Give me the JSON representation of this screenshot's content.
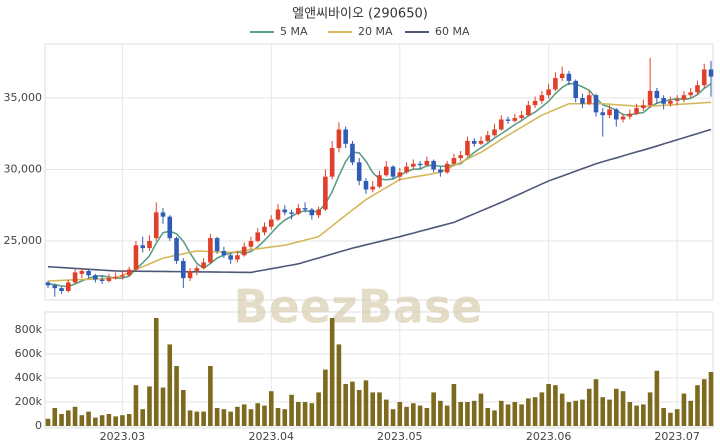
{
  "chart_data": {
    "type": "candlestick",
    "title": "엘앤씨바이오 (290650)",
    "watermark": "BeezBase",
    "categories": [
      null,
      null,
      null,
      null,
      null,
      null,
      null,
      null,
      null,
      null,
      null,
      "2023.03",
      null,
      null,
      null,
      null,
      null,
      null,
      null,
      null,
      null,
      null,
      null,
      null,
      null,
      null,
      null,
      null,
      null,
      null,
      null,
      null,
      null,
      "2023.04",
      null,
      null,
      null,
      null,
      null,
      null,
      null,
      null,
      null,
      null,
      null,
      null,
      null,
      null,
      null,
      null,
      null,
      null,
      "2023.05",
      null,
      null,
      null,
      null,
      null,
      null,
      null,
      null,
      null,
      null,
      null,
      null,
      null,
      null,
      null,
      null,
      null,
      null,
      null,
      null,
      null,
      "2023.06",
      null,
      null,
      null,
      null,
      null,
      null,
      null,
      null,
      null,
      null,
      null,
      null,
      null,
      null,
      null,
      null,
      null,
      null,
      "2023.07",
      null,
      null,
      null,
      null,
      null
    ],
    "open": [
      22100,
      21900,
      21700,
      21500,
      22100,
      22700,
      22900,
      22600,
      22300,
      22200,
      22400,
      22500,
      22600,
      23000,
      24700,
      24500,
      25200,
      27000,
      26700,
      25200,
      23600,
      22400,
      22900,
      23100,
      23500,
      25200,
      24300,
      24000,
      23700,
      24000,
      24600,
      25000,
      25600,
      26000,
      26500,
      27200,
      27000,
      26900,
      27300,
      27200,
      26800,
      27200,
      29500,
      31500,
      32800,
      31800,
      30500,
      29200,
      28600,
      28800,
      29600,
      30200,
      29500,
      29800,
      30200,
      30400,
      30300,
      30600,
      30000,
      29800,
      30400,
      30800,
      31000,
      32000,
      31800,
      32000,
      32400,
      32800,
      33500,
      33400,
      33600,
      33800,
      34500,
      34800,
      35200,
      35600,
      36400,
      36700,
      36200,
      35000,
      34600,
      35200,
      34000,
      33800,
      34200,
      33500,
      33700,
      33900,
      34300,
      34500,
      35500,
      35000,
      34600,
      34800,
      34900,
      35200,
      35400,
      35900,
      37000
    ],
    "high": [
      22200,
      22000,
      21800,
      22300,
      23000,
      23100,
      23000,
      22700,
      22600,
      22700,
      22800,
      22900,
      23200,
      25000,
      25300,
      25400,
      27700,
      27300,
      26800,
      25300,
      23800,
      23100,
      23300,
      23800,
      25500,
      25300,
      24600,
      24200,
      24300,
      24900,
      25300,
      25900,
      26300,
      26800,
      27600,
      27500,
      27200,
      27600,
      27700,
      27300,
      27400,
      30000,
      32000,
      33300,
      33000,
      32000,
      30800,
      29400,
      29200,
      29900,
      30600,
      30300,
      30100,
      30500,
      30700,
      30600,
      30900,
      30700,
      30200,
      30600,
      31100,
      31300,
      32300,
      32200,
      32300,
      32700,
      33200,
      33800,
      33700,
      33900,
      34100,
      34800,
      35100,
      35500,
      36000,
      36800,
      37200,
      36900,
      36300,
      35300,
      35500,
      35300,
      34300,
      34500,
      34300,
      33900,
      34200,
      34600,
      34900,
      37800,
      35700,
      35200,
      35100,
      35200,
      35500,
      35700,
      36200,
      37400,
      37600
    ],
    "low": [
      21700,
      21100,
      21300,
      21400,
      22000,
      22400,
      22400,
      22100,
      22000,
      22100,
      22300,
      22300,
      22500,
      22900,
      24200,
      24300,
      25000,
      26200,
      25000,
      23400,
      21700,
      22200,
      22600,
      23000,
      23400,
      24100,
      23800,
      23400,
      23500,
      23900,
      24400,
      24900,
      25400,
      25800,
      26400,
      26800,
      26500,
      26800,
      27000,
      26500,
      26600,
      27100,
      29300,
      31200,
      31500,
      30300,
      28900,
      28300,
      28400,
      28700,
      29500,
      29300,
      29200,
      29700,
      30000,
      30000,
      30200,
      29800,
      29500,
      29700,
      30300,
      30600,
      30900,
      31600,
      31700,
      31900,
      32300,
      32700,
      33200,
      33300,
      33500,
      33700,
      34300,
      34600,
      35000,
      35500,
      36200,
      35900,
      34700,
      34300,
      34500,
      33700,
      32300,
      33600,
      33000,
      33300,
      33500,
      33800,
      34100,
      34300,
      34600,
      34200,
      34400,
      34500,
      34700,
      35000,
      35200,
      35700,
      35100
    ],
    "close": [
      21900,
      21700,
      21500,
      22100,
      22800,
      22900,
      22600,
      22300,
      22200,
      22400,
      22500,
      22600,
      23000,
      24700,
      24500,
      25000,
      27000,
      26700,
      25200,
      23600,
      22400,
      22900,
      23100,
      23500,
      25200,
      24300,
      24000,
      23700,
      24000,
      24600,
      25000,
      25600,
      26000,
      26500,
      27200,
      27000,
      26900,
      27300,
      27200,
      26800,
      27200,
      29500,
      31500,
      32800,
      31800,
      30500,
      29200,
      28600,
      28800,
      29600,
      30200,
      29500,
      29800,
      30200,
      30400,
      30300,
      30600,
      30000,
      29800,
      30400,
      30800,
      31000,
      32000,
      31800,
      32000,
      32400,
      32800,
      33500,
      33400,
      33600,
      33800,
      34500,
      34800,
      35200,
      35600,
      36400,
      36700,
      36200,
      35000,
      34600,
      35200,
      34000,
      33800,
      34200,
      33500,
      33700,
      33900,
      34300,
      34500,
      35500,
      35000,
      34600,
      34800,
      34900,
      35200,
      35400,
      35900,
      37000,
      36500
    ],
    "up_color": "#e0402a",
    "down_color": "#2f5cb5",
    "ylim": [
      20870,
      38780
    ],
    "yticks": [
      {
        "value": 25000,
        "label": "25,000"
      },
      {
        "value": 30000,
        "label": "30,000"
      },
      {
        "value": 35000,
        "label": "35,000"
      }
    ],
    "grid": true,
    "series": [
      {
        "name": "5 MA",
        "color": "#5c9e86",
        "values": [
          22000,
          21950,
          21850,
          21800,
          22000,
          22200,
          22380,
          22540,
          22560,
          22480,
          22400,
          22400,
          22540,
          23040,
          23460,
          23960,
          24840,
          25580,
          25680,
          25500,
          24980,
          24160,
          23440,
          23100,
          23420,
          23800,
          24020,
          24140,
          24240,
          24120,
          24260,
          24580,
          25040,
          25540,
          26060,
          26460,
          26720,
          26980,
          27120,
          27040,
          27080,
          27600,
          28440,
          29560,
          30560,
          31220,
          31160,
          30580,
          29780,
          29340,
          29280,
          29340,
          29580,
          29860,
          30020,
          30040,
          30260,
          30300,
          30220,
          30220,
          30320,
          30400,
          30800,
          31200,
          31520,
          31840,
          32200,
          32500,
          32820,
          33140,
          33420,
          33760,
          34020,
          34380,
          34780,
          35300,
          35740,
          36020,
          35980,
          35780,
          35540,
          35000,
          34520,
          34360,
          34140,
          33840,
          33820,
          33920,
          33980,
          34380,
          34640,
          34780,
          34880,
          34960,
          34900,
          34980,
          35240,
          35680,
          36000
        ]
      },
      {
        "name": "20 MA",
        "color": "#d5b85c",
        "values": [
          22200,
          22220,
          22240,
          22260,
          22280,
          22300,
          22320,
          22340,
          22360,
          22380,
          22400,
          22600,
          22800,
          23000,
          23200,
          23400,
          23600,
          23800,
          23900,
          24000,
          24100,
          24200,
          24300,
          24280,
          24260,
          24240,
          24220,
          24200,
          24260,
          24330,
          24390,
          24450,
          24510,
          24580,
          24640,
          24700,
          24820,
          24940,
          25060,
          25180,
          25300,
          25680,
          26050,
          26430,
          26800,
          27170,
          27530,
          27900,
          28180,
          28460,
          28740,
          29020,
          29300,
          29380,
          29470,
          29550,
          29630,
          29720,
          29800,
          30030,
          30270,
          30500,
          30730,
          30970,
          31200,
          31500,
          31800,
          32100,
          32400,
          32680,
          32960,
          33240,
          33520,
          33800,
          34000,
          34200,
          34400,
          34600,
          34600,
          34600,
          34600,
          34600,
          34600,
          34570,
          34530,
          34500,
          34470,
          34430,
          34400,
          34430,
          34460,
          34490,
          34520,
          34550,
          34580,
          34610,
          34640,
          34670,
          34700
        ]
      },
      {
        "name": "60 MA",
        "color": "#4d5877",
        "values": [
          23200,
          23170,
          23140,
          23110,
          23080,
          23050,
          23020,
          22990,
          22960,
          22930,
          22900,
          22895,
          22890,
          22885,
          22880,
          22875,
          22870,
          22865,
          22860,
          22855,
          22850,
          22845,
          22840,
          22835,
          22830,
          22825,
          22820,
          22815,
          22810,
          22805,
          22800,
          22890,
          22970,
          23060,
          23140,
          23230,
          23310,
          23400,
          23540,
          23680,
          23810,
          23950,
          24090,
          24230,
          24360,
          24500,
          24610,
          24730,
          24840,
          24960,
          25070,
          25190,
          25300,
          25430,
          25550,
          25680,
          25800,
          25930,
          26050,
          26180,
          26300,
          26500,
          26700,
          26900,
          27100,
          27300,
          27500,
          27700,
          27910,
          28130,
          28340,
          28560,
          28770,
          28990,
          29200,
          29370,
          29540,
          29710,
          29890,
          30060,
          30230,
          30400,
          30540,
          30680,
          30810,
          30950,
          31090,
          31230,
          31360,
          31500,
          31640,
          31790,
          31930,
          32080,
          32220,
          32370,
          32510,
          32660,
          32800
        ]
      }
    ],
    "volume": {
      "color": "#7d6a1f",
      "ylim": [
        0,
        950000
      ],
      "yticks": [
        0,
        {
          "value": 200000,
          "label": "200k"
        },
        {
          "value": 400000,
          "label": "400k"
        },
        {
          "value": 600000,
          "label": "600k"
        },
        {
          "value": 800000,
          "label": "800k"
        }
      ],
      "values": [
        60000,
        150000,
        100000,
        130000,
        160000,
        90000,
        120000,
        70000,
        90000,
        100000,
        80000,
        90000,
        100000,
        340000,
        140000,
        330000,
        900000,
        320000,
        680000,
        500000,
        300000,
        130000,
        120000,
        120000,
        500000,
        150000,
        140000,
        120000,
        160000,
        180000,
        140000,
        190000,
        170000,
        290000,
        150000,
        140000,
        260000,
        200000,
        200000,
        190000,
        280000,
        470000,
        900000,
        680000,
        350000,
        370000,
        300000,
        380000,
        280000,
        280000,
        220000,
        140000,
        200000,
        160000,
        190000,
        170000,
        150000,
        280000,
        210000,
        170000,
        350000,
        200000,
        200000,
        210000,
        270000,
        150000,
        130000,
        210000,
        180000,
        200000,
        180000,
        230000,
        240000,
        280000,
        350000,
        340000,
        270000,
        200000,
        210000,
        220000,
        310000,
        390000,
        240000,
        220000,
        310000,
        290000,
        200000,
        170000,
        180000,
        280000,
        460000,
        150000,
        110000,
        140000,
        270000,
        210000,
        340000,
        390000,
        450000
      ]
    }
  }
}
